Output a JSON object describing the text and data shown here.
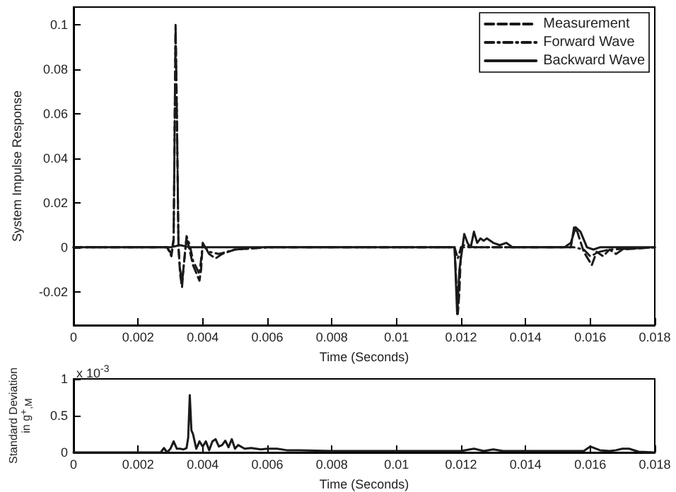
{
  "chart_data": [
    {
      "type": "line",
      "xlabel": "Time (Seconds)",
      "ylabel": "System Impulse Response",
      "xlim": [
        0,
        0.018
      ],
      "xticks": [
        0,
        0.002,
        0.004,
        0.006,
        0.008,
        0.01,
        0.012,
        0.014,
        0.016,
        0.018
      ],
      "ylim": [
        -0.035,
        0.108
      ],
      "yticks": [
        -0.02,
        0,
        0.02,
        0.04,
        0.06,
        0.08,
        0.1
      ],
      "grid": false,
      "legend": "top right",
      "marker": "none",
      "series": [
        {
          "name": "Measurement",
          "color": "#1a1a1a",
          "line_style": "dashed",
          "x": [
            0,
            0.0029,
            0.00303,
            0.0031,
            0.00316,
            0.0032,
            0.00325,
            0.0033,
            0.00336,
            0.0034,
            0.0035,
            0.00356,
            0.0037,
            0.0039,
            0.00395,
            0.004,
            0.0042,
            0.0044,
            0.0046,
            0.0048,
            0.005,
            0.006,
            0.0118,
            0.0119,
            0.01195,
            0.012,
            0.0121,
            0.0124,
            0.013,
            0.0154,
            0.0155,
            0.0156,
            0.0158,
            0.01605,
            0.0162,
            0.0164,
            0.0166,
            0.0168,
            0.017,
            0.018
          ],
          "values": [
            0,
            0,
            -0.004,
            0.003,
            0.1,
            0.06,
            0,
            -0.012,
            -0.018,
            -0.01,
            0.004,
            0.001,
            -0.008,
            -0.015,
            -0.01,
            0.002,
            -0.003,
            -0.005,
            -0.003,
            -0.002,
            -0.001,
            0,
            0,
            -0.03,
            -0.02,
            0,
            0.001,
            0,
            0,
            0,
            0.009,
            0.007,
            -0.002,
            -0.008,
            -0.002,
            -0.004,
            -0.001,
            -0.003,
            -0.001,
            0
          ]
        },
        {
          "name": "Forward Wave",
          "color": "#1a1a1a",
          "line_style": "dashdot",
          "x": [
            0,
            0.0029,
            0.00303,
            0.0031,
            0.00316,
            0.0032,
            0.00325,
            0.0033,
            0.00336,
            0.0034,
            0.0035,
            0.0036,
            0.0037,
            0.0039,
            0.004,
            0.0042,
            0.0045,
            0.005,
            0.006,
            0.0118,
            0.0119,
            0.012,
            0.0122,
            0.0155,
            0.0158,
            0.016,
            0.0163,
            0.0166,
            0.018
          ],
          "values": [
            0,
            0,
            -0.003,
            0.004,
            0.099,
            0.06,
            0,
            -0.01,
            -0.016,
            -0.01,
            0.005,
            0.001,
            -0.006,
            -0.012,
            0.001,
            -0.002,
            -0.003,
            -0.001,
            0,
            0,
            -0.005,
            0,
            0,
            0,
            -0.001,
            -0.004,
            -0.002,
            -0.001,
            0
          ]
        },
        {
          "name": "Backward Wave",
          "color": "#1a1a1a",
          "line_style": "solid",
          "x": [
            0,
            0.003,
            0.0033,
            0.0036,
            0.004,
            0.0118,
            0.01188,
            0.01195,
            0.0121,
            0.0122,
            0.0123,
            0.0124,
            0.0125,
            0.0126,
            0.0127,
            0.0128,
            0.013,
            0.0132,
            0.0134,
            0.0136,
            0.0152,
            0.0154,
            0.01555,
            0.0157,
            0.0159,
            0.0161,
            0.0163,
            0.0166,
            0.018
          ],
          "values": [
            0,
            0,
            0.001,
            0,
            0,
            0,
            -0.03,
            -0.01,
            0.006,
            0.002,
            0.0,
            0.007,
            0.002,
            0.004,
            0.003,
            0.004,
            0.002,
            0.001,
            0.002,
            0,
            0,
            0.002,
            0.009,
            0.007,
            0,
            -0.001,
            0,
            0,
            0
          ]
        }
      ]
    },
    {
      "type": "line",
      "xlabel": "Time (Seconds)",
      "ylabel": "Standard Deviation in g$^{+}$$_{,M}$",
      "annotations": [
        "x 10$^{-3}$"
      ],
      "xlim": [
        0,
        0.018
      ],
      "xticks": [
        0,
        0.002,
        0.004,
        0.006,
        0.008,
        0.01,
        0.012,
        0.014,
        0.016,
        0.018
      ],
      "ylim": [
        0,
        1
      ],
      "yticks": [
        0,
        0.5,
        1
      ],
      "grid": false,
      "marker": "none",
      "series": [
        {
          "color": "#1a1a1a",
          "line_style": "solid",
          "x": [
            0,
            0.0027,
            0.0028,
            0.0029,
            0.003,
            0.0031,
            0.0032,
            0.0033,
            0.0034,
            0.0035,
            0.00355,
            0.0036,
            0.00365,
            0.0037,
            0.0038,
            0.0039,
            0.004,
            0.0041,
            0.0042,
            0.0043,
            0.0044,
            0.0045,
            0.0046,
            0.0047,
            0.0048,
            0.0049,
            0.005,
            0.0051,
            0.0053,
            0.0055,
            0.0058,
            0.006,
            0.0063,
            0.0066,
            0.007,
            0.008,
            0.009,
            0.012,
            0.0124,
            0.0127,
            0.013,
            0.0133,
            0.015,
            0.0158,
            0.016,
            0.0163,
            0.0166,
            0.0168,
            0.017,
            0.0172,
            0.0175,
            0.018
          ],
          "values": [
            0,
            0,
            0.06,
            0,
            0.05,
            0.15,
            0.05,
            0.05,
            0.04,
            0.06,
            0.2,
            0.78,
            0.3,
            0.25,
            0.05,
            0.15,
            0.08,
            0.15,
            0.03,
            0.15,
            0.18,
            0.08,
            0.1,
            0.16,
            0.07,
            0.18,
            0.05,
            0.1,
            0.05,
            0.06,
            0.04,
            0.05,
            0.05,
            0.03,
            0.03,
            0.02,
            0.02,
            0.02,
            0.05,
            0.02,
            0.04,
            0.02,
            0.02,
            0.02,
            0.08,
            0.03,
            0.02,
            0.03,
            0.05,
            0.05,
            0.01,
            0
          ]
        }
      ]
    }
  ]
}
